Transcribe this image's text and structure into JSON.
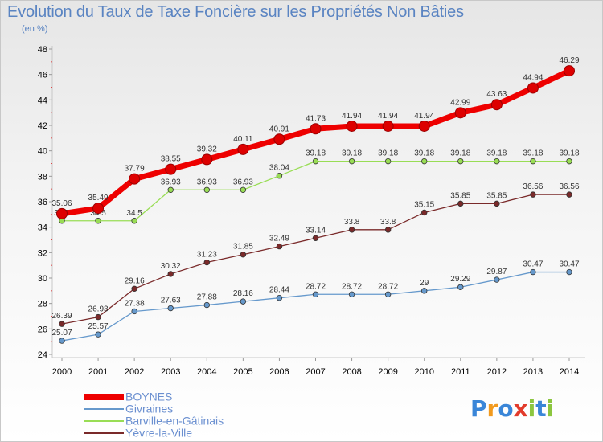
{
  "chart_data": {
    "type": "line",
    "title": "Evolution du Taux de Taxe Foncière sur les Propriétés Non Bâties",
    "subtitle": "(en %)",
    "x": [
      2000,
      2001,
      2002,
      2003,
      2004,
      2005,
      2006,
      2007,
      2008,
      2009,
      2010,
      2011,
      2012,
      2013,
      2014
    ],
    "ylim": [
      24,
      48
    ],
    "yticks": [
      24,
      26,
      28,
      30,
      32,
      34,
      36,
      38,
      40,
      42,
      44,
      46,
      48
    ],
    "legend_position": "bottom-left",
    "grid": false,
    "series": [
      {
        "name": "BOYNES",
        "color": "#ee0000",
        "values": [
          35.06,
          35.49,
          37.79,
          38.55,
          39.32,
          40.11,
          40.91,
          41.73,
          41.94,
          41.94,
          41.94,
          42.99,
          43.63,
          44.94,
          46.29
        ]
      },
      {
        "name": "Givraines",
        "color": "#6699cc",
        "values": [
          25.07,
          25.57,
          27.38,
          27.63,
          27.88,
          28.16,
          28.44,
          28.72,
          28.72,
          28.72,
          29,
          29.29,
          29.87,
          30.47,
          30.47
        ]
      },
      {
        "name": "Barville-en-Gâtinais",
        "color": "#99dd55",
        "values": [
          34.5,
          34.5,
          34.5,
          36.93,
          36.93,
          36.93,
          38.04,
          39.18,
          39.18,
          39.18,
          39.18,
          39.18,
          39.18,
          39.18,
          39.18
        ]
      },
      {
        "name": "Yèvre-la-Ville",
        "color": "#7a2a2a",
        "values": [
          26.39,
          26.93,
          29.16,
          30.32,
          31.23,
          31.85,
          32.49,
          33.14,
          33.8,
          33.8,
          35.15,
          35.85,
          35.85,
          36.56,
          36.56
        ]
      }
    ]
  },
  "logo": {
    "letters": [
      "P",
      "r",
      "o",
      "x",
      "i",
      "t",
      "i"
    ],
    "colors": [
      "#3a86d8",
      "#f29a1e",
      "#3a86d8",
      "#e23b2b",
      "#8cc63f",
      "#3a86d8",
      "#8cc63f"
    ]
  }
}
